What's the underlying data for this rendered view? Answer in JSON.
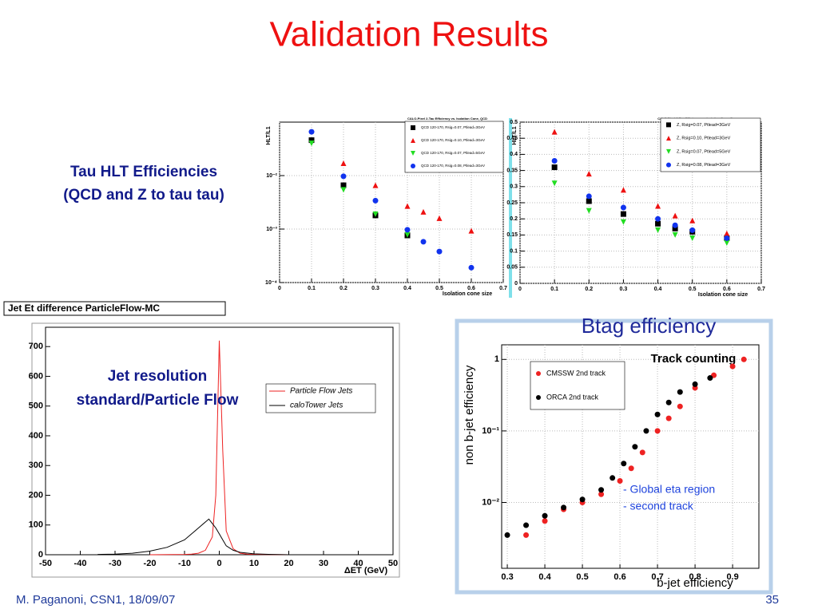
{
  "slide": {
    "title": "Validation Results",
    "texts": [
      "Tau HLT Efficiencies",
      "(QCD and Z to tau tau)",
      "Jet resolution",
      "standard/Particle Flow"
    ],
    "footer_left": "M. Paganoni, CSN1, 18/09/07",
    "footer_right": "35"
  },
  "chart_data": [
    {
      "type": "scatter",
      "title": "CALO-Pixel 2-Tau Efficiency vs. Isolation Cone, QCD",
      "x_label": "Isolation cone size",
      "y_label": "HLT/L1",
      "log_y": true,
      "grid": true,
      "x": [
        0.1,
        0.2,
        0.3,
        0.4,
        0.45,
        0.5,
        0.6
      ],
      "xlim": [
        0,
        0.7
      ],
      "xticks": [
        0,
        0.1,
        0.2,
        0.3,
        0.4,
        0.5,
        0.6,
        0.7
      ],
      "ylim": [
        0.0001,
        0.1
      ],
      "yticks": [
        {
          "value": 0.0001,
          "label": "10⁻⁴"
        },
        {
          "value": 0.001,
          "label": "10⁻³"
        },
        {
          "value": 0.01,
          "label": "10⁻²"
        }
      ],
      "series": [
        {
          "name": "QCD 120-170, Rsig=0.07, Ptlead=3GeV",
          "color": "#000000",
          "marker": "square",
          "values": [
            0.046,
            0.0066,
            0.0018,
            0.00076,
            null,
            null,
            null
          ]
        },
        {
          "name": "QCD 120-170, Rsig=0.10, Ptlead=3GeV",
          "color": "#ee1111",
          "marker": "triangle-up",
          "values": [
            null,
            0.017,
            0.0066,
            0.0027,
            0.0021,
            0.0016,
            0.00093
          ]
        },
        {
          "name": "QCD 120-170, Rsig=0.07, Ptlead=5GeV",
          "color": "#22dd22",
          "marker": "triangle-down",
          "values": [
            0.04,
            0.0054,
            0.0019,
            0.00078,
            null,
            null,
            null
          ]
        },
        {
          "name": "QCD 120-170, Rsig=0.08, Ptlead=3GeV",
          "color": "#1133ee",
          "marker": "circle",
          "values": [
            0.066,
            0.0097,
            0.0034,
            0.00097,
            0.00058,
            0.00038,
            0.00019
          ]
        }
      ]
    },
    {
      "type": "scatter",
      "title": "CALO-Pixel 2-Tau Efficiency vs. Isolation Cone, Z",
      "x_label": "Isolation cone size",
      "y_label": "HLT/L1",
      "log_y": false,
      "grid": true,
      "x": [
        0.1,
        0.2,
        0.3,
        0.4,
        0.45,
        0.5,
        0.6
      ],
      "xlim": [
        0,
        0.7
      ],
      "xticks": [
        0,
        0.1,
        0.2,
        0.3,
        0.4,
        0.5,
        0.6,
        0.7
      ],
      "ylim": [
        0,
        0.5
      ],
      "yticks": [
        0,
        0.05,
        0.1,
        0.15,
        0.2,
        0.25,
        0.3,
        0.35,
        0.4,
        0.45,
        0.5
      ],
      "series": [
        {
          "name": "Z, Rsig=0.07, Ptlead=3GeV",
          "color": "#000000",
          "marker": "square",
          "values": [
            0.36,
            0.255,
            0.215,
            0.185,
            0.17,
            0.16,
            0.14
          ]
        },
        {
          "name": "Z, Rsig=0.10, Ptlead=3GeV",
          "color": "#ee1111",
          "marker": "triangle-up",
          "values": [
            0.47,
            0.34,
            0.29,
            0.24,
            0.21,
            0.195,
            0.155
          ]
        },
        {
          "name": "Z, Rsig=0.07, Ptlead=5GeV",
          "color": "#22dd22",
          "marker": "triangle-down",
          "values": [
            0.31,
            0.225,
            0.19,
            0.165,
            0.15,
            0.14,
            0.125
          ]
        },
        {
          "name": "Z, Rsig=0.08, Ptlead=3GeV",
          "color": "#1133ee",
          "marker": "circle",
          "values": [
            0.38,
            0.27,
            0.235,
            0.2,
            0.18,
            0.165,
            0.14
          ]
        }
      ]
    },
    {
      "type": "line",
      "title": "Jet Et difference ParticleFlow-MC",
      "x_label": "ΔET (GeV)",
      "grid": false,
      "xlim": [
        -50,
        50
      ],
      "xticks": [
        -50,
        -40,
        -30,
        -20,
        -10,
        0,
        10,
        20,
        30,
        40,
        50
      ],
      "ylim": [
        0,
        765
      ],
      "yticks": [
        0,
        100,
        200,
        300,
        400,
        500,
        600,
        700
      ],
      "series": [
        {
          "name": "Particle Flow Jets",
          "color": "#ee2222",
          "x": [
            -20,
            -10,
            -8,
            -6,
            -4,
            -2,
            -1,
            0,
            1,
            2,
            4,
            6,
            8,
            12,
            20
          ],
          "values": [
            0,
            1,
            2,
            5,
            15,
            60,
            200,
            720,
            350,
            80,
            20,
            5,
            2,
            1,
            0
          ]
        },
        {
          "name": "caloTower Jets",
          "color": "#000000",
          "x": [
            -35,
            -30,
            -25,
            -20,
            -15,
            -10,
            -7,
            -5,
            -3,
            -2,
            -1,
            0,
            1,
            2,
            4,
            6,
            10,
            15,
            20
          ],
          "values": [
            1,
            2,
            5,
            12,
            25,
            50,
            80,
            100,
            120,
            105,
            90,
            70,
            50,
            30,
            15,
            8,
            3,
            1,
            0
          ]
        }
      ]
    },
    {
      "type": "scatter",
      "title": "Btag efficiency",
      "x_label": "b-jet efficiency",
      "y_label": "non b-jet efficiency",
      "annotations": [
        "Track counting",
        "- Global eta region",
        "- second track"
      ],
      "log_y": true,
      "grid": true,
      "xlim": [
        0.285,
        0.97
      ],
      "xticks": [
        0.3,
        0.4,
        0.5,
        0.6,
        0.7,
        0.8,
        0.9
      ],
      "ylim": [
        0.0012,
        1.6
      ],
      "yticks": [
        {
          "value": 0.01,
          "label": "10⁻²"
        },
        {
          "value": 0.1,
          "label": "10⁻¹"
        },
        1
      ],
      "series": [
        {
          "name": "CMSSW 2nd track",
          "color": "#ee2222",
          "marker": "circle",
          "x": [
            0.35,
            0.4,
            0.45,
            0.5,
            0.55,
            0.6,
            0.63,
            0.66,
            0.7,
            0.73,
            0.76,
            0.8,
            0.85,
            0.9,
            0.93
          ],
          "values": [
            0.0035,
            0.0055,
            0.008,
            0.01,
            0.013,
            0.02,
            0.03,
            0.05,
            0.1,
            0.15,
            0.22,
            0.4,
            0.6,
            0.8,
            1.0
          ]
        },
        {
          "name": "ORCA 2nd track",
          "color": "#000000",
          "marker": "circle",
          "x": [
            0.3,
            0.35,
            0.4,
            0.45,
            0.5,
            0.55,
            0.58,
            0.61,
            0.64,
            0.67,
            0.7,
            0.73,
            0.76,
            0.8,
            0.84
          ],
          "values": [
            0.0035,
            0.0048,
            0.0065,
            0.0085,
            0.011,
            0.015,
            0.022,
            0.035,
            0.06,
            0.1,
            0.17,
            0.25,
            0.35,
            0.45,
            0.55
          ]
        }
      ]
    }
  ]
}
